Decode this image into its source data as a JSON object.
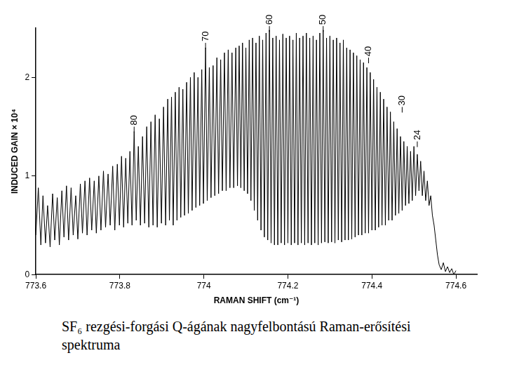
{
  "chart_data": {
    "type": "line",
    "title": "SF₆ rezgési-forgási Q-ágának nagyfelbontású Raman-erősítési spektruma",
    "x_label": "RAMAN SHIFT (cm⁻¹)",
    "y_label": "INDUCED GAIN × 10⁴",
    "color": "#000000",
    "grid": false,
    "xlim": [
      773.6,
      774.65
    ],
    "xticks": [
      773.6,
      773.8,
      774,
      774.2,
      774.4,
      774.6
    ],
    "ylim": [
      0,
      2.5
    ],
    "yticks": [
      0,
      1,
      2
    ],
    "annotations": [
      {
        "text": "80",
        "x": 773.834,
        "y": 1.5
      },
      {
        "text": "70",
        "x": 774.004,
        "y": 2.35
      },
      {
        "text": "60",
        "x": 774.156,
        "y": 2.52
      },
      {
        "text": "50",
        "x": 774.284,
        "y": 2.52
      },
      {
        "text": "40",
        "x": 774.392,
        "y": 2.2
      },
      {
        "text": "30",
        "x": 774.472,
        "y": 1.7
      },
      {
        "text": "24",
        "x": 774.508,
        "y": 1.35
      }
    ],
    "x": [
      773.6,
      773.606,
      773.612,
      773.617,
      773.623,
      773.628,
      773.634,
      773.64,
      773.645,
      773.651,
      773.656,
      773.662,
      773.667,
      773.673,
      773.678,
      773.684,
      773.689,
      773.695,
      773.7,
      773.706,
      773.711,
      773.717,
      773.722,
      773.728,
      773.733,
      773.739,
      773.744,
      773.75,
      773.755,
      773.761,
      773.766,
      773.772,
      773.777,
      773.783,
      773.788,
      773.794,
      773.799,
      773.804,
      773.809,
      773.814,
      773.819,
      773.824,
      773.829,
      773.834,
      773.839,
      773.844,
      773.849,
      773.854,
      773.859,
      773.864,
      773.869,
      773.874,
      773.879,
      773.884,
      773.889,
      773.894,
      773.899,
      773.904,
      773.909,
      773.914,
      773.918,
      773.923,
      773.927,
      773.932,
      773.936,
      773.941,
      773.945,
      773.95,
      773.954,
      773.959,
      773.963,
      773.968,
      773.972,
      773.977,
      773.981,
      773.986,
      773.99,
      773.995,
      773.999,
      774.004,
      774.008,
      774.013,
      774.017,
      774.022,
      774.026,
      774.031,
      774.035,
      774.04,
      774.044,
      774.049,
      774.053,
      774.058,
      774.062,
      774.067,
      774.071,
      774.076,
      774.08,
      774.084,
      774.088,
      774.092,
      774.096,
      774.1,
      774.104,
      774.108,
      774.112,
      774.116,
      774.12,
      774.124,
      774.128,
      774.132,
      774.136,
      774.14,
      774.144,
      774.148,
      774.152,
      774.156,
      774.16,
      774.164,
      774.168,
      774.172,
      774.176,
      774.18,
      774.184,
      774.188,
      774.192,
      774.196,
      774.2,
      774.204,
      774.208,
      774.212,
      774.216,
      774.22,
      774.224,
      774.228,
      774.232,
      774.236,
      774.24,
      774.244,
      774.248,
      774.252,
      774.256,
      774.26,
      774.264,
      774.268,
      774.272,
      774.276,
      774.28,
      774.284,
      774.288,
      774.292,
      774.296,
      774.3,
      774.304,
      774.308,
      774.312,
      774.316,
      774.32,
      774.324,
      774.328,
      774.332,
      774.336,
      774.34,
      774.344,
      774.348,
      774.352,
      774.356,
      774.36,
      774.364,
      774.368,
      774.372,
      774.376,
      774.38,
      774.384,
      774.388,
      774.392,
      774.396,
      774.4,
      774.404,
      774.408,
      774.412,
      774.416,
      774.42,
      774.424,
      774.428,
      774.432,
      774.436,
      774.44,
      774.444,
      774.448,
      774.452,
      774.456,
      774.46,
      774.464,
      774.468,
      774.472,
      774.476,
      774.48,
      774.484,
      774.488,
      774.492,
      774.496,
      774.5,
      774.504,
      774.508,
      774.512,
      774.516,
      774.52,
      774.524,
      774.528,
      774.532,
      774.536,
      774.54,
      774.544,
      774.548,
      774.552,
      774.556,
      774.56,
      774.565,
      774.57,
      774.575,
      774.58,
      774.585,
      774.59,
      774.595,
      774.6
    ],
    "values": [
      0.4,
      0.88,
      0.3,
      0.8,
      0.32,
      0.7,
      0.28,
      0.82,
      0.35,
      0.78,
      0.3,
      0.85,
      0.38,
      0.9,
      0.35,
      0.88,
      0.4,
      0.8,
      0.36,
      0.92,
      0.42,
      0.95,
      0.4,
      0.98,
      0.45,
      0.95,
      0.42,
      1.0,
      0.45,
      1.05,
      0.48,
      1.02,
      0.5,
      1.1,
      0.45,
      1.12,
      0.5,
      1.2,
      0.48,
      1.18,
      0.52,
      1.25,
      0.5,
      1.45,
      0.55,
      1.3,
      0.5,
      1.4,
      0.52,
      1.5,
      0.48,
      1.55,
      0.5,
      1.62,
      0.48,
      1.58,
      0.52,
      1.7,
      0.5,
      1.78,
      0.55,
      1.8,
      0.5,
      1.85,
      0.55,
      1.9,
      0.58,
      1.88,
      0.6,
      1.95,
      0.62,
      2.0,
      0.65,
      2.05,
      0.68,
      2.0,
      0.7,
      2.08,
      0.72,
      2.3,
      0.75,
      2.1,
      0.78,
      2.12,
      0.8,
      2.2,
      0.82,
      2.18,
      0.85,
      2.25,
      0.85,
      2.28,
      0.88,
      2.25,
      0.88,
      2.3,
      0.9,
      2.32,
      0.88,
      2.35,
      0.85,
      2.3,
      0.82,
      2.38,
      0.75,
      2.4,
      0.65,
      2.35,
      0.55,
      2.42,
      0.45,
      2.38,
      0.38,
      2.45,
      0.35,
      2.48,
      0.32,
      2.4,
      0.3,
      2.42,
      0.3,
      2.38,
      0.32,
      2.44,
      0.3,
      2.4,
      0.32,
      2.42,
      0.3,
      2.38,
      0.32,
      2.45,
      0.3,
      2.4,
      0.32,
      2.42,
      0.3,
      2.45,
      0.32,
      2.4,
      0.3,
      2.42,
      0.32,
      2.38,
      0.3,
      2.45,
      0.32,
      2.48,
      0.33,
      2.4,
      0.32,
      2.42,
      0.33,
      2.38,
      0.32,
      2.4,
      0.35,
      2.35,
      0.33,
      2.38,
      0.35,
      2.3,
      0.35,
      2.28,
      0.36,
      2.25,
      0.38,
      2.22,
      0.4,
      2.18,
      0.4,
      2.15,
      0.42,
      2.1,
      0.42,
      2.05,
      0.45,
      1.98,
      0.45,
      1.9,
      0.48,
      1.85,
      0.5,
      1.78,
      0.5,
      1.7,
      0.55,
      1.65,
      0.55,
      1.55,
      0.6,
      1.48,
      0.62,
      1.4,
      0.65,
      1.35,
      0.7,
      1.3,
      0.72,
      1.25,
      0.75,
      1.3,
      0.8,
      1.22,
      0.85,
      1.15,
      0.8,
      1.05,
      0.75,
      0.95,
      0.7,
      0.8,
      0.6,
      0.5,
      0.35,
      0.2,
      0.1,
      0.05,
      0.12,
      0.03,
      0.08,
      0.02,
      0.06,
      0.0,
      0.04
    ]
  }
}
